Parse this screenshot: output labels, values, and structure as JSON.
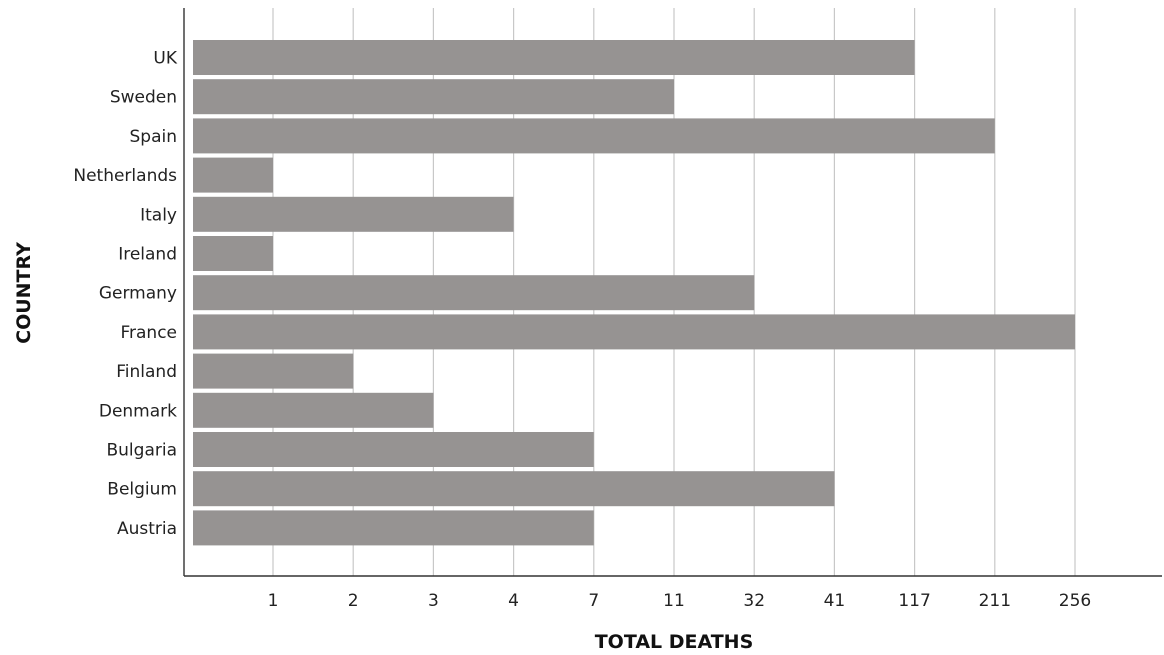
{
  "chart_data": {
    "type": "bar",
    "orientation": "horizontal",
    "xlabel": "TOTAL DEATHS",
    "ylabel": "COUNTRY",
    "categories": [
      "UK",
      "Sweden",
      "Spain",
      "Netherlands",
      "Italy",
      "Ireland",
      "Germany",
      "France",
      "Finland",
      "Denmark",
      "Bulgaria",
      "Belgium",
      "Austria"
    ],
    "values": [
      117,
      11,
      211,
      1,
      4,
      1,
      32,
      256,
      2,
      3,
      7,
      41,
      7
    ],
    "x_ticks": [
      1,
      2,
      3,
      4,
      7,
      11,
      32,
      41,
      117,
      211,
      256
    ],
    "x_scale": "categorical-ordinal",
    "grid": {
      "vertical": true,
      "horizontal": false
    },
    "legend": "none",
    "colors": {
      "bar": "#969392",
      "gridline": "#c8c8c8",
      "axis": "#333333"
    }
  }
}
